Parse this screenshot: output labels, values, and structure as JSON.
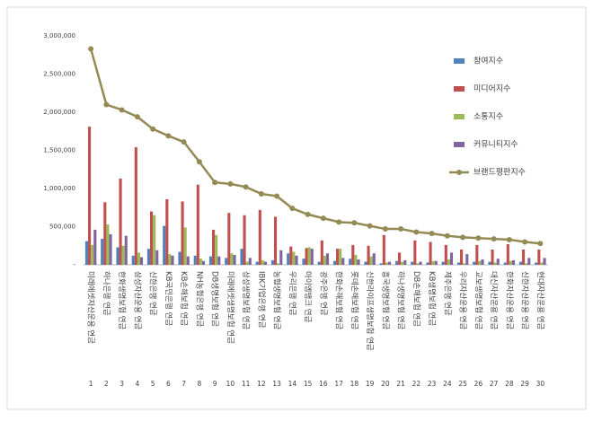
{
  "chart_data": {
    "type": "bar",
    "categories": [
      "미래에셋자산운용 연금",
      "하나은행 연금",
      "한화생명보험 연금",
      "삼성자산운용 연금",
      "신한은행 연금",
      "KB국민은행 연금",
      "KB손해보험 연금",
      "NH농협은행 연금",
      "DB생명보험 연금",
      "미래에셋생명보험 연금",
      "삼성생명보험 연금",
      "IBK기업은행 연금",
      "농협생명보험 연금",
      "우리은행 연금",
      "아이엠뱅크 연금",
      "광주은행 연금",
      "한화손해보험 연금",
      "롯데손해보험 연금",
      "신한라이프생명보험 연금",
      "흥국생명보험 연금",
      "하나생명보험 연금",
      "DB손해보험 연금",
      "KB생명보험 연금",
      "제주은행 연금",
      "우리자산운용 연금",
      "교보생명보험 연금",
      "대신자산운용 연금",
      "한화자산운용 연금",
      "신한자산운용 연금",
      "현대자산운용 연금"
    ],
    "category_numbers": [
      "1",
      "2",
      "3",
      "4",
      "5",
      "6",
      "7",
      "8",
      "9",
      "10",
      "11",
      "12",
      "13",
      "14",
      "15",
      "16",
      "17",
      "18",
      "19",
      "20",
      "21",
      "22",
      "23",
      "24",
      "25",
      "26",
      "27",
      "28",
      "29",
      "30"
    ],
    "series": [
      {
        "name": "참여지수",
        "color": "#4f81bd",
        "values": [
          310000,
          340000,
          230000,
          120000,
          210000,
          510000,
          170000,
          120000,
          110000,
          90000,
          210000,
          40000,
          60000,
          150000,
          80000,
          40000,
          50000,
          80000,
          40000,
          20000,
          50000,
          40000,
          30000,
          40000,
          30000,
          40000,
          40000,
          30000,
          40000,
          30000
        ]
      },
      {
        "name": "미디어지수",
        "color": "#c0504d",
        "values": [
          1810000,
          820000,
          1130000,
          1540000,
          700000,
          860000,
          830000,
          1050000,
          460000,
          680000,
          650000,
          720000,
          630000,
          240000,
          220000,
          320000,
          210000,
          260000,
          250000,
          390000,
          160000,
          320000,
          300000,
          260000,
          200000,
          260000,
          200000,
          270000,
          200000,
          200000
        ]
      },
      {
        "name": "소통지수",
        "color": "#9bbb59",
        "values": [
          260000,
          530000,
          250000,
          160000,
          650000,
          140000,
          490000,
          80000,
          390000,
          150000,
          40000,
          60000,
          20000,
          170000,
          230000,
          120000,
          210000,
          130000,
          110000,
          30000,
          40000,
          20000,
          50000,
          70000,
          20000,
          50000,
          30000,
          50000,
          20000,
          30000
        ]
      },
      {
        "name": "커뮤니티지수",
        "color": "#8064a2",
        "values": [
          460000,
          400000,
          380000,
          100000,
          190000,
          120000,
          110000,
          50000,
          110000,
          130000,
          90000,
          40000,
          190000,
          120000,
          210000,
          150000,
          90000,
          70000,
          150000,
          40000,
          60000,
          40000,
          50000,
          160000,
          140000,
          70000,
          80000,
          60000,
          90000,
          90000
        ]
      },
      {
        "name": "브랜드평판지수",
        "color": "#948a54",
        "type": "line",
        "values": [
          2830000,
          2100000,
          2030000,
          1940000,
          1780000,
          1690000,
          1610000,
          1350000,
          1080000,
          1060000,
          1020000,
          930000,
          900000,
          740000,
          660000,
          610000,
          560000,
          550000,
          510000,
          470000,
          470000,
          430000,
          410000,
          380000,
          360000,
          350000,
          340000,
          330000,
          300000,
          280000
        ]
      }
    ],
    "ylim": [
      0,
      3000000
    ],
    "yticks": [
      {
        "value": 0,
        "label": "-"
      },
      {
        "value": 500000,
        "label": "500,000"
      },
      {
        "value": 1000000,
        "label": "1,000,000"
      },
      {
        "value": 1500000,
        "label": "1,500,000"
      },
      {
        "value": 2000000,
        "label": "2,000,000"
      },
      {
        "value": 2500000,
        "label": "2,500,000"
      },
      {
        "value": 3000000,
        "label": "3,000,000"
      }
    ],
    "grid": false,
    "legend": "right"
  }
}
